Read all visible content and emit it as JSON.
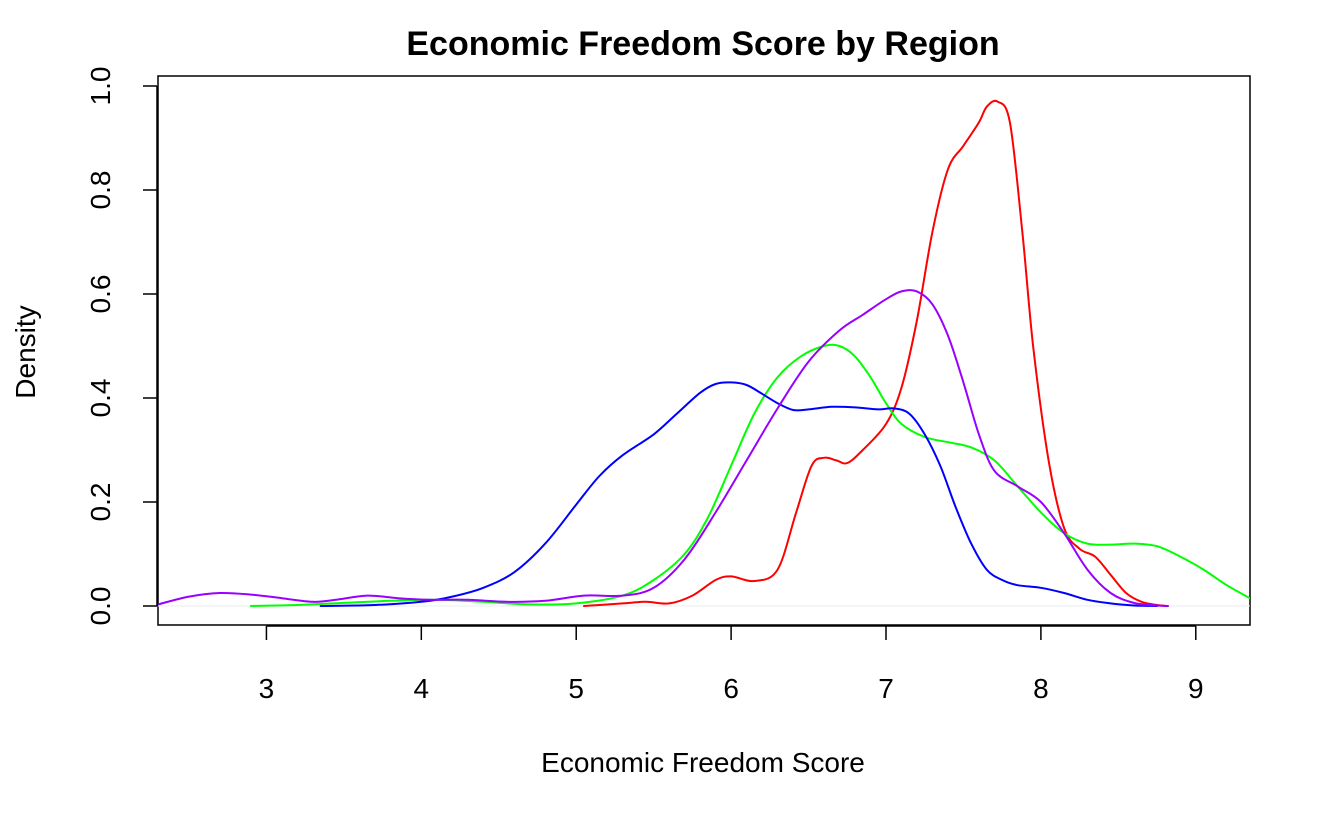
{
  "chart_data": {
    "type": "line",
    "title": "Economic Freedom Score by Region",
    "xlabel": "Economic Freedom Score",
    "ylabel": "Density",
    "xlim": [
      2.3,
      9.35
    ],
    "ylim": [
      -0.04,
      1.0
    ],
    "x_ticks": [
      3,
      4,
      5,
      6,
      7,
      8,
      9
    ],
    "x_tick_labels": [
      "3",
      "4",
      "5",
      "6",
      "7",
      "8",
      "9"
    ],
    "y_ticks": [
      0.0,
      0.2,
      0.4,
      0.6,
      0.8,
      1.0
    ],
    "y_tick_labels": [
      "0.0",
      "0.2",
      "0.4",
      "0.6",
      "0.8",
      "1.0"
    ],
    "grid": false,
    "legend": "none",
    "series": [
      {
        "color": "#ff0000",
        "x": [
          5.05,
          5.3,
          5.45,
          5.6,
          5.75,
          5.9,
          6.0,
          6.15,
          6.3,
          6.42,
          6.52,
          6.6,
          6.68,
          6.75,
          6.85,
          7.0,
          7.1,
          7.2,
          7.3,
          7.4,
          7.5,
          7.6,
          7.65,
          7.72,
          7.8,
          7.88,
          7.95,
          8.05,
          8.15,
          8.25,
          8.35,
          8.45,
          8.55,
          8.65,
          8.75,
          8.82
        ],
        "y": [
          0.0,
          0.005,
          0.008,
          0.005,
          0.02,
          0.05,
          0.057,
          0.048,
          0.07,
          0.18,
          0.27,
          0.285,
          0.28,
          0.275,
          0.3,
          0.35,
          0.42,
          0.55,
          0.72,
          0.84,
          0.885,
          0.93,
          0.96,
          0.97,
          0.93,
          0.72,
          0.5,
          0.28,
          0.15,
          0.11,
          0.095,
          0.06,
          0.025,
          0.008,
          0.002,
          0.0
        ]
      },
      {
        "color": "#00ff00",
        "x": [
          2.9,
          3.2,
          3.5,
          3.8,
          4.1,
          4.4,
          4.7,
          5.0,
          5.3,
          5.5,
          5.7,
          5.85,
          6.0,
          6.15,
          6.3,
          6.45,
          6.6,
          6.7,
          6.8,
          6.9,
          7.0,
          7.1,
          7.25,
          7.4,
          7.55,
          7.7,
          7.85,
          8.0,
          8.15,
          8.3,
          8.45,
          8.6,
          8.75,
          8.9,
          9.05,
          9.2,
          9.35
        ],
        "y": [
          0.0,
          0.002,
          0.006,
          0.01,
          0.012,
          0.008,
          0.003,
          0.005,
          0.02,
          0.05,
          0.1,
          0.17,
          0.27,
          0.37,
          0.44,
          0.48,
          0.5,
          0.5,
          0.48,
          0.44,
          0.39,
          0.35,
          0.325,
          0.315,
          0.305,
          0.28,
          0.23,
          0.18,
          0.14,
          0.12,
          0.118,
          0.12,
          0.115,
          0.095,
          0.07,
          0.04,
          0.015
        ]
      },
      {
        "color": "#0000ff",
        "x": [
          3.35,
          3.7,
          4.0,
          4.2,
          4.4,
          4.6,
          4.8,
          5.0,
          5.15,
          5.3,
          5.5,
          5.65,
          5.8,
          5.9,
          6.0,
          6.1,
          6.2,
          6.3,
          6.4,
          6.5,
          6.65,
          6.8,
          6.95,
          7.05,
          7.15,
          7.25,
          7.35,
          7.45,
          7.55,
          7.65,
          7.75,
          7.85,
          8.0,
          8.15,
          8.3,
          8.45,
          8.6,
          8.75
        ],
        "y": [
          0.0,
          0.002,
          0.008,
          0.018,
          0.035,
          0.065,
          0.12,
          0.195,
          0.25,
          0.29,
          0.33,
          0.37,
          0.41,
          0.427,
          0.43,
          0.425,
          0.408,
          0.39,
          0.377,
          0.378,
          0.383,
          0.382,
          0.378,
          0.38,
          0.37,
          0.33,
          0.27,
          0.19,
          0.12,
          0.07,
          0.05,
          0.04,
          0.035,
          0.025,
          0.012,
          0.005,
          0.001,
          0.0
        ]
      },
      {
        "color": "#9900ff",
        "x": [
          2.3,
          2.5,
          2.7,
          2.9,
          3.1,
          3.3,
          3.45,
          3.65,
          3.85,
          4.05,
          4.3,
          4.55,
          4.8,
          5.05,
          5.3,
          5.5,
          5.7,
          5.9,
          6.1,
          6.3,
          6.5,
          6.7,
          6.85,
          7.0,
          7.1,
          7.2,
          7.3,
          7.4,
          7.5,
          7.6,
          7.7,
          7.85,
          8.0,
          8.15,
          8.3,
          8.45,
          8.6,
          8.75,
          8.82
        ],
        "y": [
          0.003,
          0.018,
          0.025,
          0.022,
          0.015,
          0.008,
          0.012,
          0.02,
          0.015,
          0.012,
          0.012,
          0.008,
          0.01,
          0.02,
          0.02,
          0.035,
          0.09,
          0.18,
          0.28,
          0.38,
          0.47,
          0.53,
          0.56,
          0.59,
          0.605,
          0.605,
          0.58,
          0.52,
          0.43,
          0.33,
          0.26,
          0.23,
          0.2,
          0.14,
          0.07,
          0.025,
          0.006,
          0.001,
          0.0
        ]
      }
    ]
  }
}
